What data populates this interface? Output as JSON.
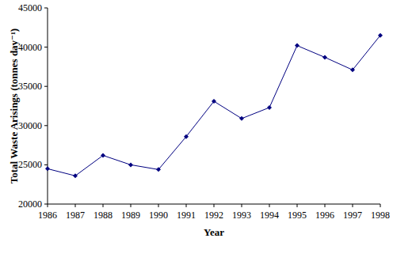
{
  "chart_data": {
    "type": "line",
    "x_label": "Year",
    "y_label": "Total Waste Arisings (tonnes day⁻¹)",
    "x": [
      1986,
      1987,
      1988,
      1989,
      1990,
      1991,
      1992,
      1993,
      1994,
      1995,
      1996,
      1997,
      1998
    ],
    "values": [
      24500,
      23600,
      26200,
      25000,
      24400,
      28600,
      33100,
      30900,
      32300,
      40200,
      38700,
      37100,
      41500
    ],
    "color": "#000080",
    "marker": "diamond",
    "xlim": [
      1986,
      1998
    ],
    "xticks": [
      1986,
      1987,
      1988,
      1989,
      1990,
      1991,
      1992,
      1993,
      1994,
      1995,
      1996,
      1997,
      1998
    ],
    "ylim": [
      20000,
      45000
    ],
    "yticks": [
      20000,
      25000,
      30000,
      35000,
      40000,
      45000
    ],
    "grid": false
  }
}
